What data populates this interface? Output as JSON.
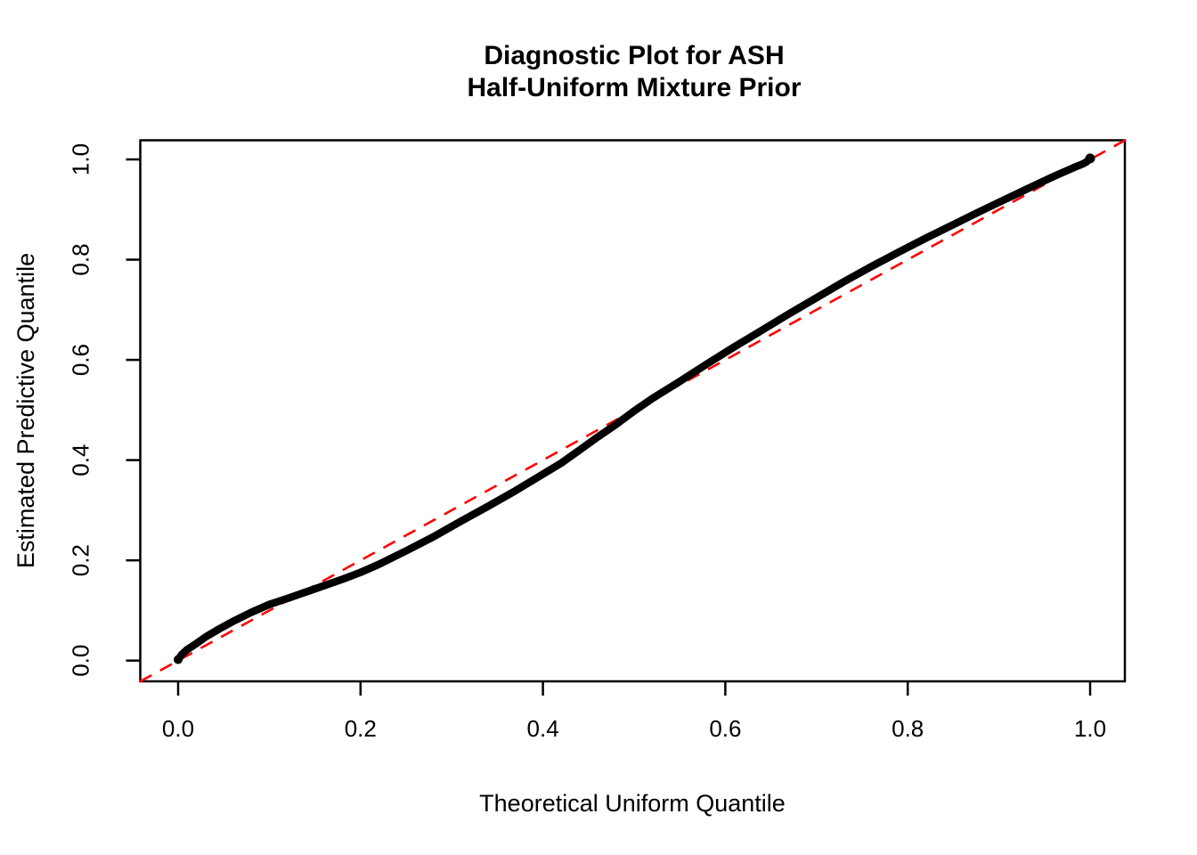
{
  "title": {
    "line1": "Diagnostic Plot for ASH",
    "line2": "Half-Uniform Mixture Prior"
  },
  "axes": {
    "x_label": "Theoretical Uniform Quantile",
    "y_label": "Estimated Predictive Quantile"
  },
  "colors": {
    "curve": "#000000",
    "reference_line": "#FF0000",
    "axis": "#000000",
    "background": "#FFFFFF"
  },
  "chart_data": {
    "type": "scatter",
    "title": "Diagnostic Plot for ASH\nHalf-Uniform Mixture Prior",
    "xlabel": "Theoretical Uniform Quantile",
    "ylabel": "Estimated Predictive Quantile",
    "xlim": [
      -0.042,
      1.04
    ],
    "ylim": [
      -0.042,
      1.04
    ],
    "x_ticks": [
      0.0,
      0.2,
      0.4,
      0.6,
      0.8,
      1.0
    ],
    "y_ticks": [
      0.0,
      0.2,
      0.4,
      0.6,
      0.8,
      1.0
    ],
    "grid": false,
    "legend": "none",
    "series": [
      {
        "name": "estimated-predictive-quantiles",
        "type": "thick-point-band",
        "color": "#000000",
        "points": [
          [
            0.0,
            0.002
          ],
          [
            0.004,
            0.012
          ],
          [
            0.01,
            0.022
          ],
          [
            0.02,
            0.034
          ],
          [
            0.03,
            0.047
          ],
          [
            0.045,
            0.063
          ],
          [
            0.06,
            0.078
          ],
          [
            0.08,
            0.096
          ],
          [
            0.1,
            0.112
          ],
          [
            0.12,
            0.124
          ],
          [
            0.15,
            0.143
          ],
          [
            0.18,
            0.162
          ],
          [
            0.2,
            0.176
          ],
          [
            0.22,
            0.192
          ],
          [
            0.25,
            0.219
          ],
          [
            0.28,
            0.247
          ],
          [
            0.31,
            0.278
          ],
          [
            0.34,
            0.308
          ],
          [
            0.37,
            0.339
          ],
          [
            0.4,
            0.372
          ],
          [
            0.42,
            0.394
          ],
          [
            0.44,
            0.42
          ],
          [
            0.46,
            0.446
          ],
          [
            0.48,
            0.471
          ],
          [
            0.5,
            0.498
          ],
          [
            0.52,
            0.523
          ],
          [
            0.55,
            0.557
          ],
          [
            0.58,
            0.592
          ],
          [
            0.61,
            0.626
          ],
          [
            0.64,
            0.659
          ],
          [
            0.67,
            0.692
          ],
          [
            0.7,
            0.724
          ],
          [
            0.73,
            0.756
          ],
          [
            0.76,
            0.786
          ],
          [
            0.79,
            0.815
          ],
          [
            0.82,
            0.843
          ],
          [
            0.85,
            0.87
          ],
          [
            0.88,
            0.897
          ],
          [
            0.91,
            0.923
          ],
          [
            0.94,
            0.949
          ],
          [
            0.96,
            0.966
          ],
          [
            0.975,
            0.978
          ],
          [
            0.985,
            0.986
          ],
          [
            0.992,
            0.991
          ],
          [
            0.996,
            0.995
          ],
          [
            1.0,
            1.002
          ]
        ]
      },
      {
        "name": "reference-line-y-equals-x",
        "type": "dashed-line",
        "color": "#FF0000",
        "points": [
          [
            -0.042,
            -0.042
          ],
          [
            1.04,
            1.04
          ]
        ]
      }
    ]
  }
}
